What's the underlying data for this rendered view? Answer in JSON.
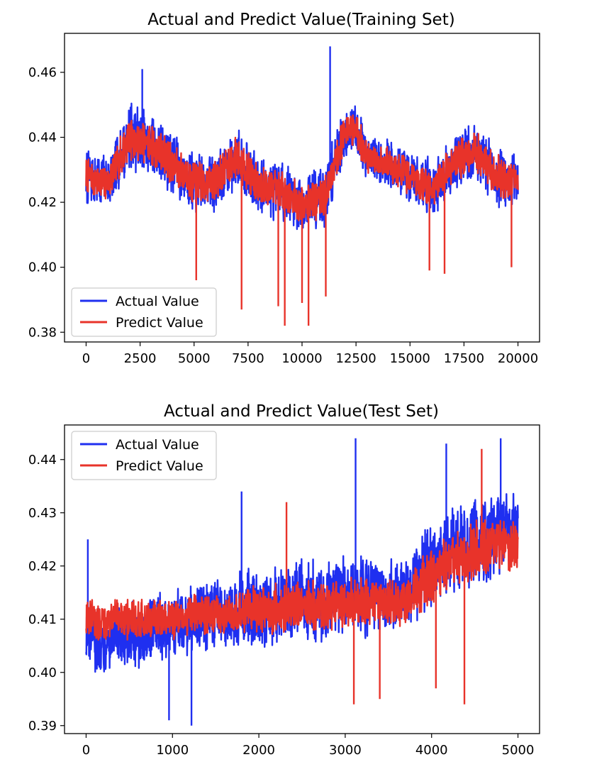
{
  "chart_data": [
    {
      "type": "line",
      "title": "Actual and Predict Value(Training Set)",
      "xlabel": "",
      "ylabel": "",
      "xlim": [
        -1000,
        21000
      ],
      "ylim": [
        0.377,
        0.472
      ],
      "xticks": [
        0,
        2500,
        5000,
        7500,
        10000,
        12500,
        15000,
        17500,
        20000
      ],
      "xtick_labels": [
        "0",
        "2500",
        "5000",
        "7500",
        "10000",
        "12500",
        "15000",
        "17500",
        "20000"
      ],
      "yticks": [
        0.38,
        0.4,
        0.42,
        0.44,
        0.46
      ],
      "ytick_labels": [
        "0.38",
        "0.40",
        "0.42",
        "0.44",
        "0.46"
      ],
      "grid": false,
      "legend_position": "lower-left",
      "x": [
        0,
        1000,
        2000,
        3000,
        4000,
        5000,
        6000,
        7000,
        8000,
        9000,
        10000,
        11000,
        12000,
        12500,
        13000,
        14000,
        15000,
        16000,
        17000,
        18000,
        19000,
        20000
      ],
      "series": [
        {
          "name": "Actual Value",
          "color": "#1f2ff0",
          "values": [
            0.428,
            0.426,
            0.44,
            0.438,
            0.432,
            0.426,
            0.427,
            0.434,
            0.425,
            0.423,
            0.42,
            0.421,
            0.442,
            0.443,
            0.433,
            0.432,
            0.428,
            0.424,
            0.432,
            0.436,
            0.428,
            0.427
          ],
          "spread": [
            0.009,
            0.009,
            0.011,
            0.011,
            0.01,
            0.01,
            0.01,
            0.01,
            0.01,
            0.011,
            0.011,
            0.011,
            0.009,
            0.009,
            0.008,
            0.008,
            0.009,
            0.01,
            0.01,
            0.01,
            0.01,
            0.009
          ]
        },
        {
          "name": "Predict Value",
          "color": "#e8332a",
          "values": [
            0.428,
            0.426,
            0.44,
            0.438,
            0.432,
            0.426,
            0.427,
            0.434,
            0.425,
            0.423,
            0.42,
            0.421,
            0.442,
            0.443,
            0.433,
            0.432,
            0.428,
            0.424,
            0.432,
            0.436,
            0.428,
            0.427
          ],
          "spread": [
            0.006,
            0.006,
            0.007,
            0.007,
            0.007,
            0.007,
            0.007,
            0.007,
            0.007,
            0.007,
            0.007,
            0.007,
            0.006,
            0.006,
            0.006,
            0.006,
            0.006,
            0.007,
            0.007,
            0.007,
            0.007,
            0.006
          ]
        }
      ],
      "annotations_spikes": [
        {
          "series": "Actual Value",
          "x": 11300,
          "y": 0.468
        },
        {
          "series": "Actual Value",
          "x": 2600,
          "y": 0.461
        },
        {
          "series": "Predict Value",
          "x": 5100,
          "y": 0.396
        },
        {
          "series": "Predict Value",
          "x": 7200,
          "y": 0.387
        },
        {
          "series": "Predict Value",
          "x": 8900,
          "y": 0.388
        },
        {
          "series": "Predict Value",
          "x": 9200,
          "y": 0.382
        },
        {
          "series": "Predict Value",
          "x": 10300,
          "y": 0.382
        },
        {
          "series": "Predict Value",
          "x": 10000,
          "y": 0.389
        },
        {
          "series": "Predict Value",
          "x": 11100,
          "y": 0.391
        },
        {
          "series": "Predict Value",
          "x": 15900,
          "y": 0.399
        },
        {
          "series": "Predict Value",
          "x": 16600,
          "y": 0.398
        },
        {
          "series": "Predict Value",
          "x": 19700,
          "y": 0.4
        }
      ]
    },
    {
      "type": "line",
      "title": "Actual and Predict Value(Test Set)",
      "xlabel": "",
      "ylabel": "",
      "xlim": [
        -250,
        5250
      ],
      "ylim": [
        0.3885,
        0.4465
      ],
      "xticks": [
        0,
        1000,
        2000,
        3000,
        4000,
        5000
      ],
      "xtick_labels": [
        "0",
        "1000",
        "2000",
        "3000",
        "4000",
        "5000"
      ],
      "yticks": [
        0.39,
        0.4,
        0.41,
        0.42,
        0.43,
        0.44
      ],
      "ytick_labels": [
        "0.39",
        "0.40",
        "0.41",
        "0.42",
        "0.43",
        "0.44"
      ],
      "grid": false,
      "legend_position": "upper-left",
      "x": [
        0,
        250,
        500,
        750,
        1000,
        1250,
        1500,
        1750,
        2000,
        2250,
        2500,
        2750,
        3000,
        3250,
        3500,
        3750,
        4000,
        4250,
        4500,
        4750,
        5000
      ],
      "series": [
        {
          "name": "Actual Value",
          "color": "#1f2ff0",
          "values": [
            0.407,
            0.406,
            0.407,
            0.408,
            0.409,
            0.41,
            0.411,
            0.412,
            0.412,
            0.413,
            0.414,
            0.413,
            0.415,
            0.414,
            0.414,
            0.416,
            0.42,
            0.423,
            0.425,
            0.426,
            0.427
          ],
          "spread": [
            0.007,
            0.007,
            0.007,
            0.007,
            0.007,
            0.007,
            0.007,
            0.008,
            0.008,
            0.008,
            0.008,
            0.008,
            0.008,
            0.008,
            0.008,
            0.008,
            0.009,
            0.009,
            0.009,
            0.009,
            0.008
          ]
        },
        {
          "name": "Predict Value",
          "color": "#e8332a",
          "values": [
            0.41,
            0.41,
            0.41,
            0.41,
            0.41,
            0.411,
            0.411,
            0.411,
            0.412,
            0.412,
            0.413,
            0.412,
            0.413,
            0.413,
            0.413,
            0.414,
            0.418,
            0.421,
            0.423,
            0.424,
            0.424
          ],
          "spread": [
            0.004,
            0.004,
            0.004,
            0.004,
            0.004,
            0.004,
            0.004,
            0.004,
            0.005,
            0.005,
            0.005,
            0.005,
            0.005,
            0.005,
            0.005,
            0.005,
            0.006,
            0.006,
            0.006,
            0.006,
            0.005
          ]
        }
      ],
      "annotations_spikes": [
        {
          "series": "Actual Value",
          "x": 3120,
          "y": 0.444
        },
        {
          "series": "Actual Value",
          "x": 4170,
          "y": 0.443
        },
        {
          "series": "Actual Value",
          "x": 4800,
          "y": 0.444
        },
        {
          "series": "Actual Value",
          "x": 1800,
          "y": 0.434
        },
        {
          "series": "Actual Value",
          "x": 20,
          "y": 0.425
        },
        {
          "series": "Actual Value",
          "x": 960,
          "y": 0.391
        },
        {
          "series": "Actual Value",
          "x": 1220,
          "y": 0.39
        },
        {
          "series": "Predict Value",
          "x": 3100,
          "y": 0.394
        },
        {
          "series": "Predict Value",
          "x": 3400,
          "y": 0.395
        },
        {
          "series": "Predict Value",
          "x": 4380,
          "y": 0.394
        },
        {
          "series": "Predict Value",
          "x": 4580,
          "y": 0.442
        },
        {
          "series": "Predict Value",
          "x": 4050,
          "y": 0.397
        },
        {
          "series": "Predict Value",
          "x": 2320,
          "y": 0.432
        }
      ]
    }
  ]
}
